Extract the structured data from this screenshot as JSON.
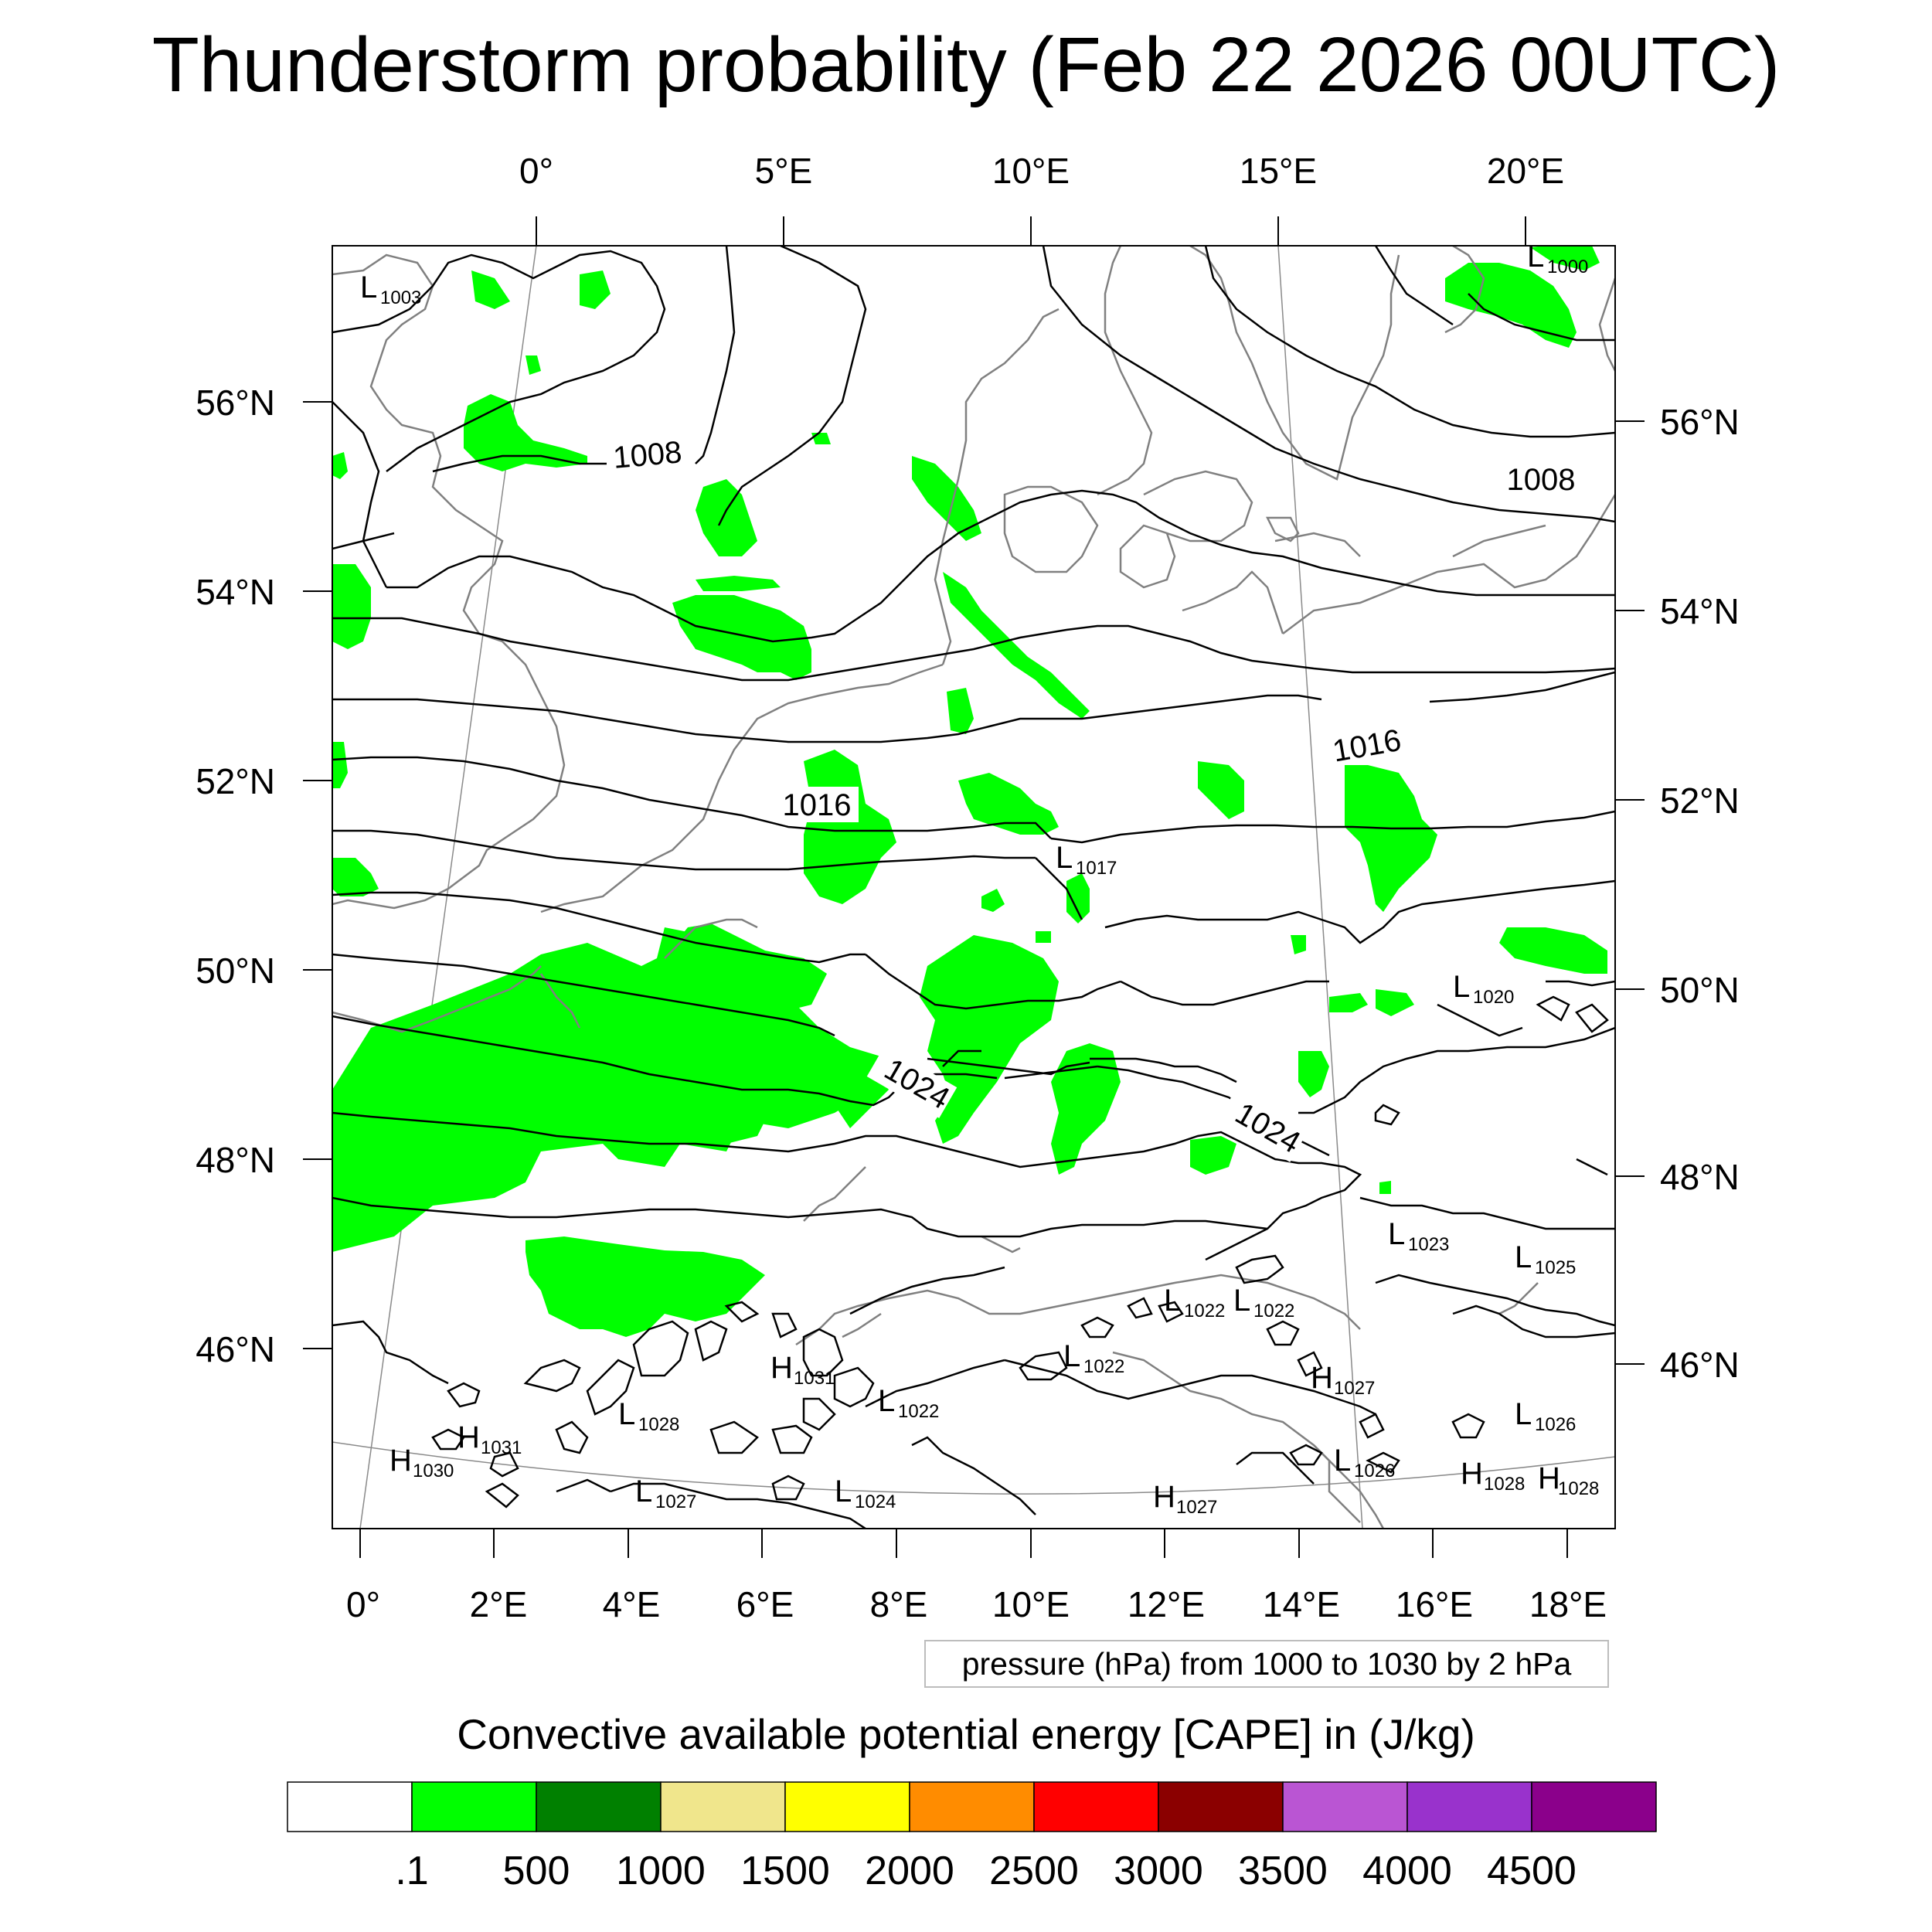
{
  "title": "Thunderstorm probability (Feb 22 2026 00UTC)",
  "top_lon_labels": [
    "0°",
    "5°E",
    "10°E",
    "15°E",
    "20°E"
  ],
  "bottom_lon_labels": [
    "0°",
    "2°E",
    "4°E",
    "6°E",
    "8°E",
    "10°E",
    "12°E",
    "14°E",
    "16°E",
    "18°E"
  ],
  "left_lat_labels": [
    "56°N",
    "54°N",
    "52°N",
    "50°N",
    "48°N",
    "46°N"
  ],
  "right_lat_labels": [
    "56°N",
    "54°N",
    "52°N",
    "50°N",
    "48°N",
    "46°N"
  ],
  "isobar_labels": [
    "1008",
    "1008",
    "1016",
    "1016",
    "1024",
    "1024"
  ],
  "pressure_centers": [
    {
      "type": "L",
      "value": "1003"
    },
    {
      "type": "L",
      "value": "1000"
    },
    {
      "type": "L",
      "value": "1017"
    },
    {
      "type": "L",
      "value": "1020"
    },
    {
      "type": "L",
      "value": "1023"
    },
    {
      "type": "L",
      "value": "1025"
    },
    {
      "type": "L",
      "value": "1022"
    },
    {
      "type": "L",
      "value": "1022"
    },
    {
      "type": "L",
      "value": "1022"
    },
    {
      "type": "H",
      "value": "1027"
    },
    {
      "type": "L",
      "value": "1026"
    },
    {
      "type": "H",
      "value": "1031"
    },
    {
      "type": "L",
      "value": "1022"
    },
    {
      "type": "L",
      "value": "1028"
    },
    {
      "type": "H",
      "value": "1031"
    },
    {
      "type": "H",
      "value": "1030"
    },
    {
      "type": "L",
      "value": "1027"
    },
    {
      "type": "L",
      "value": "1024"
    },
    {
      "type": "H",
      "value": "1027"
    },
    {
      "type": "L",
      "value": "1026"
    },
    {
      "type": "H",
      "value": "1028"
    },
    {
      "type": "H",
      "value": "1028"
    }
  ],
  "pressure_note": "pressure (hPa) from 1000 to 1030 by 2 hPa",
  "colorbar": {
    "title": "Convective available potential energy [CAPE] in (J/kg)",
    "colors": [
      "#ffffff",
      "#00ff00",
      "#008000",
      "#f0e68c",
      "#ffff00",
      "#ff8c00",
      "#ff0000",
      "#8b0000",
      "#ba55d3",
      "#9932cc",
      "#8b008b"
    ],
    "labels": [
      ".1",
      "500",
      "1000",
      "1500",
      "2000",
      "2500",
      "3000",
      "3500",
      "4000",
      "4500"
    ]
  },
  "colors": {
    "cape_green": "#00ff00",
    "isobar": "#000000",
    "coastline": "#808080"
  }
}
